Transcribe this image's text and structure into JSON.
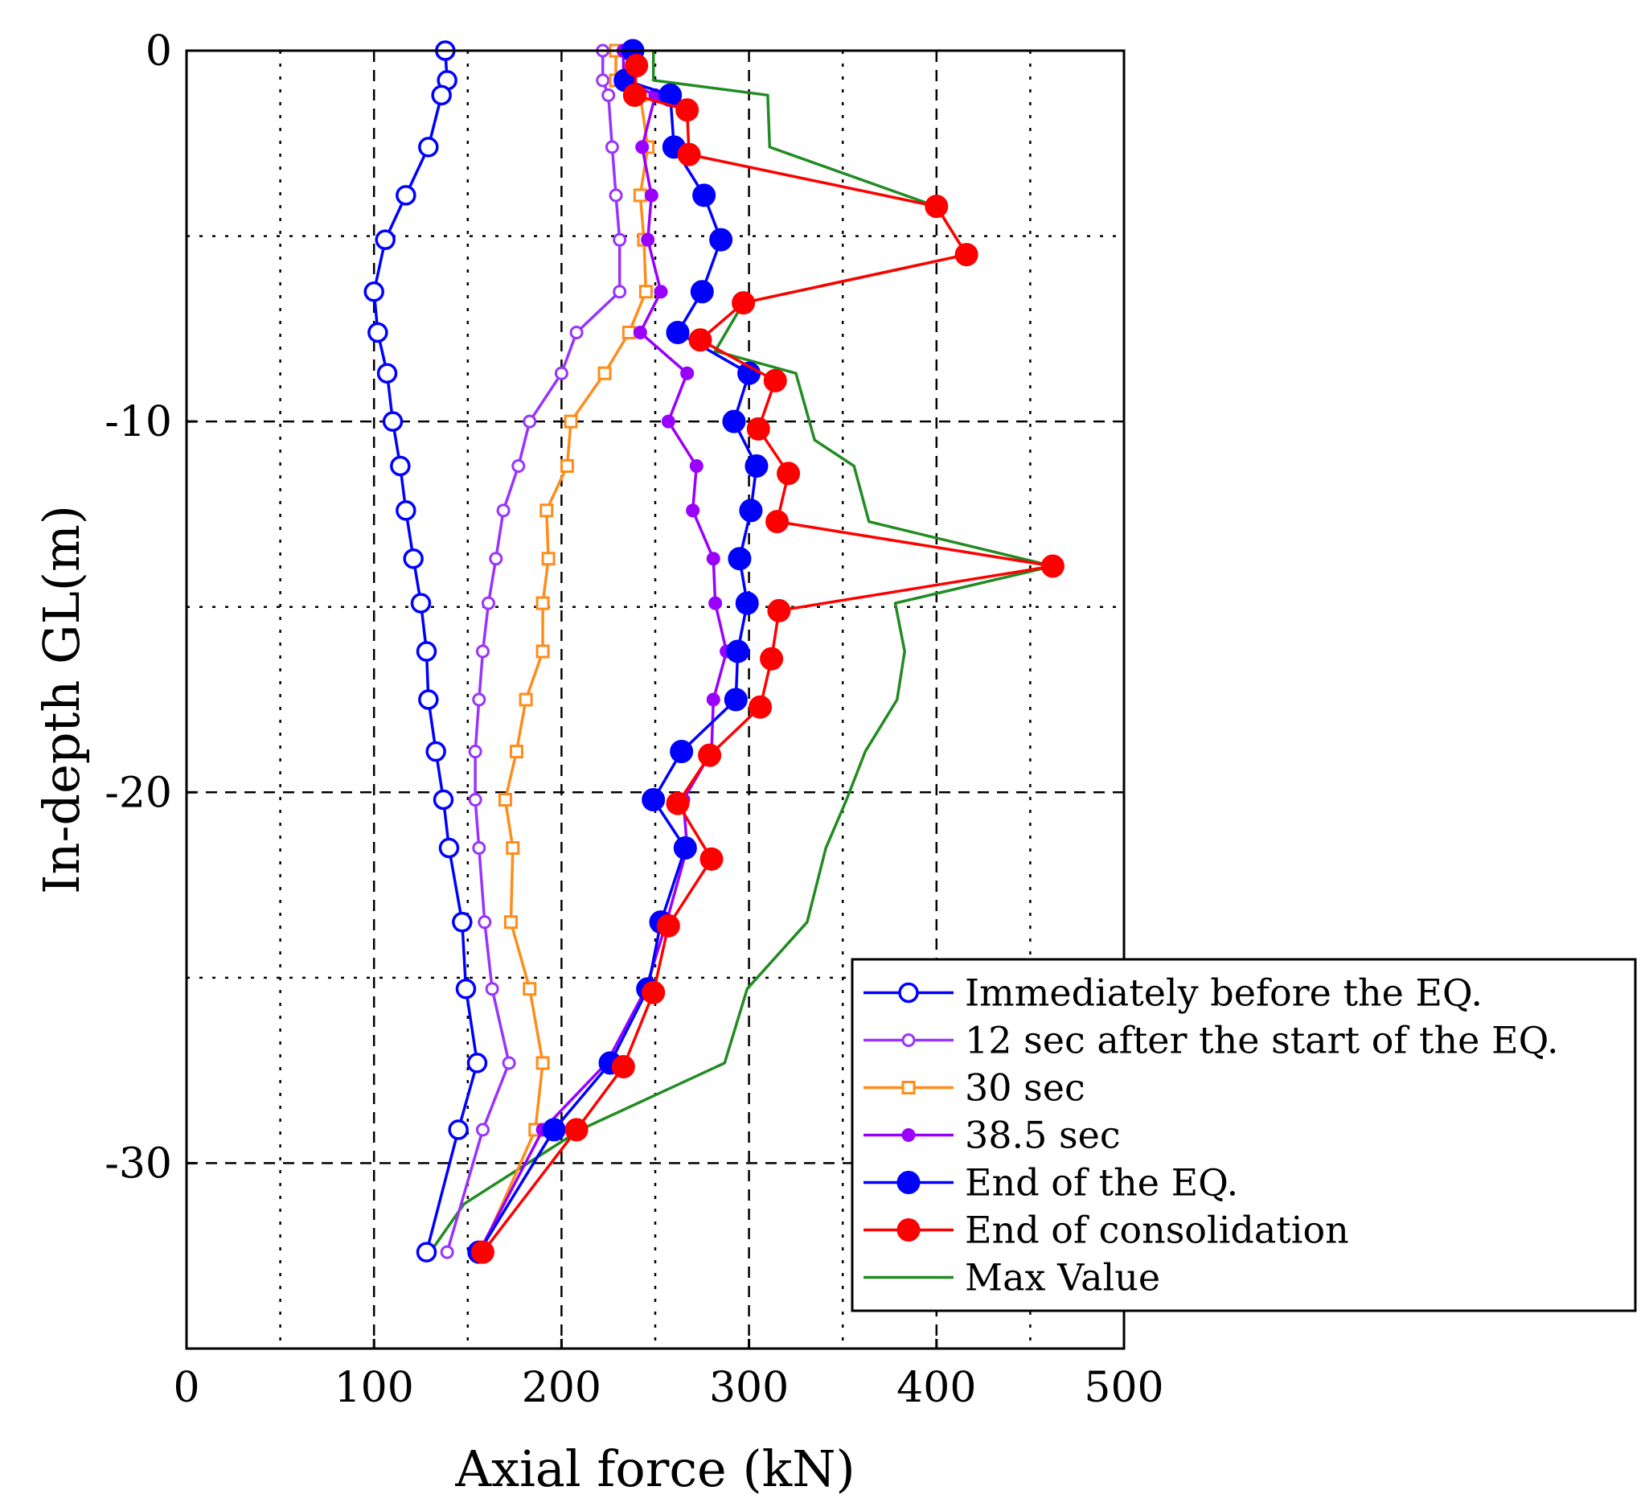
{
  "chart_data": {
    "type": "line",
    "title": "",
    "xlabel": "Axial force (kN)",
    "ylabel": "In-depth GL(m)",
    "xlim": [
      0,
      500
    ],
    "ylim": [
      -35,
      0
    ],
    "x_ticks": [
      0,
      100,
      200,
      300,
      400,
      500
    ],
    "x_tick_labels": [
      "0",
      "100",
      "200",
      "300",
      "400",
      "500"
    ],
    "y_ticks": [
      0,
      -10,
      -20,
      -30
    ],
    "y_tick_labels": [
      "0",
      "-10",
      "-20",
      "-30"
    ],
    "grid": true,
    "legend_position": "bottom-right",
    "series": [
      {
        "name": "Immediately before the EQ.",
        "color": "#0000ff",
        "marker": "open-circle",
        "x": [
          138,
          139,
          136,
          129,
          117,
          106,
          100,
          102,
          107,
          110,
          114,
          117,
          121,
          125,
          128,
          129,
          133,
          137,
          140,
          147,
          149,
          155,
          145,
          128
        ],
        "y": [
          0,
          -0.8,
          -1.2,
          -2.6,
          -3.9,
          -5.1,
          -6.5,
          -7.6,
          -8.7,
          -10,
          -11.2,
          -12.4,
          -13.7,
          -14.9,
          -16.2,
          -17.5,
          -18.9,
          -20.2,
          -21.5,
          -23.5,
          -25.3,
          -27.3,
          -29.1,
          -32.4
        ]
      },
      {
        "name": "12 sec after the start of the EQ.",
        "color": "#9933ff",
        "marker": "small-open-circle",
        "x": [
          222,
          222,
          225,
          227,
          229,
          231,
          231,
          208,
          200,
          183,
          177,
          169,
          165,
          161,
          158,
          156,
          154,
          154,
          156,
          159,
          163,
          172,
          158,
          139
        ],
        "y": [
          0,
          -0.8,
          -1.2,
          -2.6,
          -3.9,
          -5.1,
          -6.5,
          -7.6,
          -8.7,
          -10,
          -11.2,
          -12.4,
          -13.7,
          -14.9,
          -16.2,
          -17.5,
          -18.9,
          -20.2,
          -21.5,
          -23.5,
          -25.3,
          -27.3,
          -29.1,
          -32.4
        ]
      },
      {
        "name": "30 sec",
        "color": "#ff8c1a",
        "marker": "open-square",
        "x": [
          229,
          229,
          242,
          246,
          242,
          244,
          245,
          236,
          223,
          205,
          203,
          192,
          193,
          190,
          190,
          181,
          176,
          170,
          174,
          173,
          183,
          190,
          186,
          157
        ],
        "y": [
          0,
          -0.8,
          -1.2,
          -2.6,
          -3.9,
          -5.1,
          -6.5,
          -7.6,
          -8.7,
          -10,
          -11.2,
          -12.4,
          -13.7,
          -14.9,
          -16.2,
          -17.5,
          -18.9,
          -20.2,
          -21.5,
          -23.5,
          -25.3,
          -27.3,
          -29.1,
          -32.4
        ]
      },
      {
        "name": "38.5 sec",
        "color": "#9900ff",
        "marker": "small-filled-circle",
        "x": [
          233,
          233,
          250,
          243,
          248,
          246,
          253,
          242,
          267,
          257,
          272,
          270,
          281,
          282,
          288,
          281,
          280,
          265,
          267,
          256,
          245,
          224,
          190,
          156
        ],
        "y": [
          0,
          -0.8,
          -1.2,
          -2.6,
          -3.9,
          -5.1,
          -6.5,
          -7.6,
          -8.7,
          -10,
          -11.2,
          -12.4,
          -13.7,
          -14.9,
          -16.2,
          -17.5,
          -18.9,
          -20.2,
          -21.5,
          -23.5,
          -25.3,
          -27.3,
          -29.1,
          -32.4
        ]
      },
      {
        "name": "End of the EQ.",
        "color": "#0000ff",
        "marker": "filled-circle",
        "x": [
          238,
          234,
          258,
          260,
          276,
          285,
          275,
          262,
          300,
          292,
          304,
          301,
          295,
          299,
          294,
          293,
          264,
          249,
          266,
          253,
          246,
          226,
          196,
          156
        ],
        "y": [
          0,
          -0.8,
          -1.2,
          -2.6,
          -3.9,
          -5.1,
          -6.5,
          -7.6,
          -8.7,
          -10,
          -11.2,
          -12.4,
          -13.7,
          -14.9,
          -16.2,
          -17.5,
          -18.9,
          -20.2,
          -21.5,
          -23.5,
          -25.3,
          -27.3,
          -29.1,
          -32.4
        ]
      },
      {
        "name": "End of consolidation",
        "color": "#ff0000",
        "marker": "filled-circle",
        "x": [
          240,
          239,
          267,
          268,
          400,
          416,
          297,
          274,
          314,
          305,
          321,
          315,
          462,
          316,
          312,
          306,
          279,
          262,
          280,
          257,
          249,
          233,
          208,
          158
        ],
        "y": [
          -0.4,
          -1.2,
          -1.6,
          -2.8,
          -4.2,
          -5.5,
          -6.8,
          -7.8,
          -8.9,
          -10.2,
          -11.4,
          -12.7,
          -13.9,
          -15.1,
          -16.4,
          -17.7,
          -19,
          -20.3,
          -21.8,
          -23.6,
          -25.4,
          -27.4,
          -29.1,
          -32.4
        ]
      },
      {
        "name": "Max Value",
        "color": "#228b22",
        "marker": "none",
        "x": [
          249,
          249,
          310,
          311,
          400,
          416,
          297,
          282,
          325,
          335,
          356,
          364,
          462,
          378,
          383,
          379,
          362,
          352,
          341,
          331,
          299,
          287,
          210,
          148,
          130
        ],
        "y": [
          0,
          -0.8,
          -1.2,
          -2.6,
          -4.2,
          -5.5,
          -6.8,
          -8.1,
          -8.7,
          -10.5,
          -11.2,
          -12.7,
          -13.9,
          -14.9,
          -16.2,
          -17.5,
          -18.9,
          -20.2,
          -21.5,
          -23.5,
          -25.3,
          -27.3,
          -29.1,
          -31.1,
          -32.4
        ]
      }
    ]
  }
}
